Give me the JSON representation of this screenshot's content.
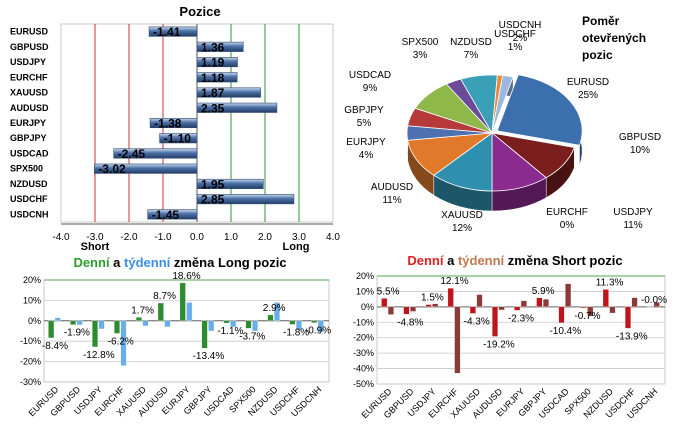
{
  "chart_data": [
    {
      "type": "bar",
      "orientation": "horizontal",
      "title": "Pozice",
      "categories": [
        "EURUSD",
        "GBPUSD",
        "USDJPY",
        "EURCHF",
        "XAUUSD",
        "AUDUSD",
        "EURJPY",
        "GBPJPY",
        "USDCAD",
        "SPX500",
        "NZDUSD",
        "USDCHF",
        "USDCNH"
      ],
      "values": [
        -1.41,
        1.36,
        1.19,
        1.18,
        1.87,
        2.35,
        -1.38,
        -1.1,
        -2.45,
        -3.02,
        1.95,
        2.85,
        -1.45
      ],
      "value_labels": [
        "-1.41",
        "1.36",
        "1.19",
        "1.18",
        "1.87",
        "2.35",
        "-1.38",
        "-1.10",
        "-2.45",
        "-3.02",
        "1.95",
        "2.85",
        "-1.45"
      ],
      "xlim": [
        -4.0,
        4.0
      ],
      "xticks": [
        -4,
        -3,
        -2,
        -1,
        0,
        1,
        2,
        3,
        4
      ],
      "xtick_labels": [
        "-4.0",
        "-3.0",
        "-2.0",
        "-1.0",
        "0.0",
        "1.0",
        "2.0",
        "3.0",
        "4.0"
      ],
      "short_label": "Short",
      "long_label": "Long",
      "red_lines_at": [
        -3,
        -2,
        -1
      ],
      "green_lines_at": [
        1,
        2,
        3
      ],
      "bar_color": "#4a6fa5"
    },
    {
      "type": "pie",
      "title_lines": [
        "Poměr",
        "otevřených",
        "pozic"
      ],
      "categories": [
        "EURUSD",
        "GBPUSD",
        "USDJPY",
        "EURCHF",
        "XAUUSD",
        "AUDUSD",
        "EURJPY",
        "GBPJPY",
        "USDCAD",
        "SPX500",
        "NZDUSD",
        "USDCHF",
        "USDCNH"
      ],
      "values": [
        25,
        10,
        11,
        0,
        12,
        11,
        4,
        5,
        9,
        3,
        7,
        1,
        2
      ],
      "value_labels": [
        "25%",
        "10%",
        "11%",
        "0%",
        "12%",
        "11%",
        "4%",
        "5%",
        "9%",
        "3%",
        "7%",
        "1%",
        "2%"
      ],
      "colors": [
        "#3c6fae",
        "#7a1e1e",
        "#8b2a8f",
        "#4a8a3a",
        "#2f8fae",
        "#e07a2a",
        "#4e70b0",
        "#b73a3a",
        "#8fb84a",
        "#6b4a9a",
        "#3aa0b8",
        "#e88a3a",
        "#9ab8e0"
      ]
    },
    {
      "type": "bar",
      "title_parts": [
        {
          "text": "Denní",
          "color": "#2aa02a"
        },
        {
          "text": " a ",
          "color": "#000000"
        },
        {
          "text": "týdenní",
          "color": "#3a8ee6"
        },
        {
          "text": " změna Long pozic",
          "color": "#000000"
        }
      ],
      "categories": [
        "EURUSD",
        "GBPUSD",
        "USDJPY",
        "EURCHF",
        "XAUUSD",
        "AUDUSD",
        "EURJPY",
        "GBPJPY",
        "USDCAD",
        "SPX500",
        "NZDUSD",
        "USDCHF",
        "USDCNH"
      ],
      "series": [
        {
          "name": "Denní",
          "color": "#2e8b2e",
          "values": [
            -8.4,
            -1.9,
            -12.8,
            -6.2,
            1.7,
            8.7,
            18.6,
            -13.4,
            -1.1,
            -3.7,
            2.9,
            -1.8,
            -0.9
          ]
        },
        {
          "name": "Týdenní",
          "color": "#6aaee8",
          "values": [
            1.5,
            -2.0,
            -4.0,
            -22.0,
            -2.5,
            -3.0,
            9.0,
            -5.0,
            -3.0,
            -5.0,
            9.0,
            -4.5,
            -5.5
          ]
        }
      ],
      "data_labels": [
        "-8.4%",
        "-1.9%",
        "-12.8%",
        "-6.2%",
        "1.7%",
        "8.7%",
        "18.6%",
        "-13.4%",
        "-1.1%",
        "-3.7%",
        "2.9%",
        "-1.8%",
        "-0.9%"
      ],
      "ylim": [
        -30,
        20
      ],
      "yticks": [
        20,
        10,
        0,
        -10,
        -20,
        -30
      ],
      "ytick_labels": [
        "20%",
        "10%",
        "0%",
        "-10%",
        "-20%",
        "-30%"
      ]
    },
    {
      "type": "bar",
      "title_parts": [
        {
          "text": "Denní",
          "color": "#e02020"
        },
        {
          "text": " a ",
          "color": "#000000"
        },
        {
          "text": "týdenní",
          "color": "#c07850"
        },
        {
          "text": " změna Short pozic",
          "color": "#000000"
        }
      ],
      "categories": [
        "EURUSD",
        "GBPUSD",
        "USDJPY",
        "EURCHF",
        "XAUUSD",
        "AUDUSD",
        "EURJPY",
        "GBPJPY",
        "USDCAD",
        "SPX500",
        "NZDUSD",
        "USDCHF",
        "USDCNH"
      ],
      "series": [
        {
          "name": "Denní",
          "color": "#c0141c",
          "values": [
            5.5,
            -4.8,
            1.5,
            12.1,
            -4.3,
            -19.2,
            -2.3,
            5.9,
            -10.4,
            -0.7,
            11.3,
            -13.9,
            -0.0
          ]
        },
        {
          "name": "Týdenní",
          "color": "#8b3a3a",
          "values": [
            -5.0,
            -3.0,
            2.0,
            -43.0,
            8.0,
            -2.0,
            4.0,
            5.0,
            15.0,
            -6.0,
            -4.0,
            6.0,
            3.0
          ]
        }
      ],
      "data_labels": [
        "5.5%",
        "-4.8%",
        "1.5%",
        "12.1%",
        "-4.3%",
        "-19.2%",
        "-2.3%",
        "5.9%",
        "-10.4%",
        "-0.7%",
        "11.3%",
        "-13.9%",
        "-0.0%"
      ],
      "ylim": [
        -50,
        20
      ],
      "yticks": [
        20,
        10,
        0,
        -10,
        -20,
        -30,
        -40,
        -50
      ],
      "ytick_labels": [
        "20%",
        "10%",
        "0%",
        "-10%",
        "-20%",
        "-30%",
        "-40%",
        "-50%"
      ]
    }
  ]
}
